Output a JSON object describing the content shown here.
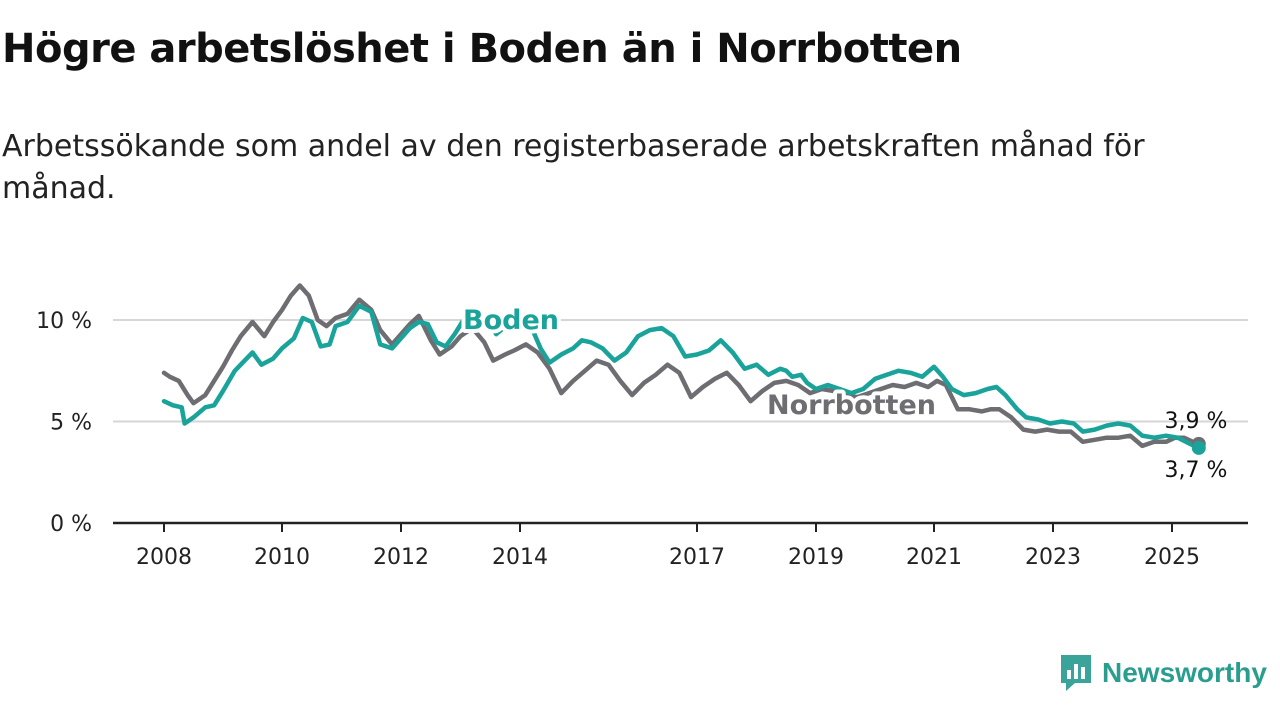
{
  "title": "Högre arbetslöshet i Boden än i Norrbotten",
  "subtitle": "Arbetssökande som andel av den registerbaserade arbetskraften månad för månad.",
  "brand": {
    "name": "Newsworthy",
    "icon": "newsworthy-logo-icon",
    "color": "#3aa39a"
  },
  "chart_data": {
    "type": "line",
    "x_ticks": [
      "2008",
      "2010",
      "2012",
      "2014",
      "2017",
      "2019",
      "2021",
      "2023",
      "2025"
    ],
    "y_ticks": [
      "0 %",
      "5 %",
      "10 %"
    ],
    "y_tick_values": [
      0,
      5,
      10
    ],
    "ylim": [
      0,
      10
    ],
    "grid": true,
    "series": [
      {
        "name": "Norrbotten",
        "color": "#6d6d72",
        "end_label": "3,9 %",
        "points": [
          [
            2008.0,
            7.4
          ],
          [
            2008.1,
            7.2
          ],
          [
            2008.25,
            7.0
          ],
          [
            2008.4,
            6.3
          ],
          [
            2008.5,
            5.9
          ],
          [
            2008.7,
            6.3
          ],
          [
            2008.85,
            7.0
          ],
          [
            2009.0,
            7.7
          ],
          [
            2009.15,
            8.5
          ],
          [
            2009.3,
            9.2
          ],
          [
            2009.5,
            9.9
          ],
          [
            2009.7,
            9.2
          ],
          [
            2009.85,
            9.9
          ],
          [
            2010.0,
            10.5
          ],
          [
            2010.15,
            11.2
          ],
          [
            2010.3,
            11.7
          ],
          [
            2010.45,
            11.2
          ],
          [
            2010.6,
            10.0
          ],
          [
            2010.75,
            9.7
          ],
          [
            2010.9,
            10.1
          ],
          [
            2011.1,
            10.3
          ],
          [
            2011.3,
            11.0
          ],
          [
            2011.5,
            10.5
          ],
          [
            2011.65,
            9.5
          ],
          [
            2011.85,
            8.8
          ],
          [
            2012.0,
            9.3
          ],
          [
            2012.15,
            9.8
          ],
          [
            2012.3,
            10.2
          ],
          [
            2012.5,
            9.0
          ],
          [
            2012.65,
            8.3
          ],
          [
            2012.85,
            8.7
          ],
          [
            2013.0,
            9.2
          ],
          [
            2013.2,
            9.6
          ],
          [
            2013.4,
            8.9
          ],
          [
            2013.55,
            8.0
          ],
          [
            2013.75,
            8.3
          ],
          [
            2013.9,
            8.5
          ],
          [
            2014.1,
            8.8
          ],
          [
            2014.3,
            8.4
          ],
          [
            2014.5,
            7.6
          ],
          [
            2014.7,
            6.4
          ],
          [
            2014.9,
            7.0
          ],
          [
            2015.1,
            7.5
          ],
          [
            2015.3,
            8.0
          ],
          [
            2015.5,
            7.8
          ],
          [
            2015.7,
            7.0
          ],
          [
            2015.9,
            6.3
          ],
          [
            2016.1,
            6.9
          ],
          [
            2016.3,
            7.3
          ],
          [
            2016.5,
            7.8
          ],
          [
            2016.7,
            7.4
          ],
          [
            2016.9,
            6.2
          ],
          [
            2017.1,
            6.7
          ],
          [
            2017.3,
            7.1
          ],
          [
            2017.5,
            7.4
          ],
          [
            2017.7,
            6.8
          ],
          [
            2017.9,
            6.0
          ],
          [
            2018.1,
            6.5
          ],
          [
            2018.3,
            6.9
          ],
          [
            2018.5,
            7.0
          ],
          [
            2018.7,
            6.8
          ],
          [
            2018.9,
            6.4
          ],
          [
            2019.1,
            6.6
          ],
          [
            2019.3,
            6.5
          ],
          [
            2019.5,
            6.3
          ],
          [
            2019.7,
            6.2
          ],
          [
            2019.9,
            6.4
          ],
          [
            2020.1,
            6.6
          ],
          [
            2020.3,
            6.8
          ],
          [
            2020.5,
            6.7
          ],
          [
            2020.7,
            6.9
          ],
          [
            2020.9,
            6.7
          ],
          [
            2021.05,
            7.0
          ],
          [
            2021.2,
            6.8
          ],
          [
            2021.4,
            5.6
          ],
          [
            2021.6,
            5.6
          ],
          [
            2021.8,
            5.5
          ],
          [
            2021.95,
            5.6
          ],
          [
            2022.1,
            5.6
          ],
          [
            2022.3,
            5.2
          ],
          [
            2022.5,
            4.6
          ],
          [
            2022.7,
            4.5
          ],
          [
            2022.9,
            4.6
          ],
          [
            2023.1,
            4.5
          ],
          [
            2023.3,
            4.5
          ],
          [
            2023.5,
            4.0
          ],
          [
            2023.7,
            4.1
          ],
          [
            2023.9,
            4.2
          ],
          [
            2024.1,
            4.2
          ],
          [
            2024.3,
            4.3
          ],
          [
            2024.5,
            3.8
          ],
          [
            2024.7,
            4.0
          ],
          [
            2024.9,
            4.0
          ],
          [
            2025.05,
            4.2
          ],
          [
            2025.2,
            4.2
          ],
          [
            2025.35,
            4.0
          ],
          [
            2025.45,
            3.9
          ]
        ]
      },
      {
        "name": "Boden",
        "color": "#1aa39a",
        "end_label": "3,7 %",
        "points": [
          [
            2008.0,
            6.0
          ],
          [
            2008.15,
            5.8
          ],
          [
            2008.3,
            5.7
          ],
          [
            2008.35,
            4.9
          ],
          [
            2008.5,
            5.2
          ],
          [
            2008.7,
            5.7
          ],
          [
            2008.85,
            5.8
          ],
          [
            2009.0,
            6.5
          ],
          [
            2009.2,
            7.5
          ],
          [
            2009.4,
            8.1
          ],
          [
            2009.5,
            8.4
          ],
          [
            2009.65,
            7.8
          ],
          [
            2009.85,
            8.1
          ],
          [
            2010.0,
            8.6
          ],
          [
            2010.2,
            9.1
          ],
          [
            2010.35,
            10.1
          ],
          [
            2010.5,
            9.9
          ],
          [
            2010.65,
            8.7
          ],
          [
            2010.8,
            8.8
          ],
          [
            2010.9,
            9.7
          ],
          [
            2011.1,
            9.9
          ],
          [
            2011.3,
            10.7
          ],
          [
            2011.5,
            10.4
          ],
          [
            2011.65,
            8.8
          ],
          [
            2011.85,
            8.6
          ],
          [
            2012.0,
            9.1
          ],
          [
            2012.15,
            9.6
          ],
          [
            2012.3,
            9.9
          ],
          [
            2012.45,
            9.8
          ],
          [
            2012.6,
            8.9
          ],
          [
            2012.75,
            8.7
          ],
          [
            2012.9,
            9.3
          ],
          [
            2013.05,
            10.0
          ],
          [
            2013.2,
            10.5
          ],
          [
            2013.4,
            10.2
          ],
          [
            2013.6,
            9.3
          ],
          [
            2013.8,
            9.8
          ],
          [
            2014.0,
            9.6
          ],
          [
            2014.2,
            9.6
          ],
          [
            2014.35,
            8.6
          ],
          [
            2014.5,
            7.9
          ],
          [
            2014.7,
            8.3
          ],
          [
            2014.9,
            8.6
          ],
          [
            2015.05,
            9.0
          ],
          [
            2015.2,
            8.9
          ],
          [
            2015.4,
            8.6
          ],
          [
            2015.6,
            8.0
          ],
          [
            2015.8,
            8.4
          ],
          [
            2016.0,
            9.2
          ],
          [
            2016.2,
            9.5
          ],
          [
            2016.4,
            9.6
          ],
          [
            2016.6,
            9.2
          ],
          [
            2016.8,
            8.2
          ],
          [
            2017.0,
            8.3
          ],
          [
            2017.2,
            8.5
          ],
          [
            2017.4,
            9.0
          ],
          [
            2017.6,
            8.4
          ],
          [
            2017.8,
            7.6
          ],
          [
            2018.0,
            7.8
          ],
          [
            2018.2,
            7.3
          ],
          [
            2018.4,
            7.6
          ],
          [
            2018.5,
            7.5
          ],
          [
            2018.6,
            7.2
          ],
          [
            2018.75,
            7.3
          ],
          [
            2018.85,
            6.9
          ],
          [
            2019.0,
            6.6
          ],
          [
            2019.2,
            6.8
          ],
          [
            2019.4,
            6.6
          ],
          [
            2019.6,
            6.4
          ],
          [
            2019.8,
            6.6
          ],
          [
            2020.0,
            7.1
          ],
          [
            2020.2,
            7.3
          ],
          [
            2020.4,
            7.5
          ],
          [
            2020.6,
            7.4
          ],
          [
            2020.8,
            7.2
          ],
          [
            2021.0,
            7.7
          ],
          [
            2021.15,
            7.2
          ],
          [
            2021.3,
            6.6
          ],
          [
            2021.5,
            6.3
          ],
          [
            2021.7,
            6.4
          ],
          [
            2021.9,
            6.6
          ],
          [
            2022.05,
            6.7
          ],
          [
            2022.2,
            6.3
          ],
          [
            2022.4,
            5.6
          ],
          [
            2022.55,
            5.2
          ],
          [
            2022.75,
            5.1
          ],
          [
            2022.95,
            4.9
          ],
          [
            2023.15,
            5.0
          ],
          [
            2023.35,
            4.9
          ],
          [
            2023.5,
            4.5
          ],
          [
            2023.7,
            4.6
          ],
          [
            2023.9,
            4.8
          ],
          [
            2024.1,
            4.9
          ],
          [
            2024.3,
            4.8
          ],
          [
            2024.5,
            4.3
          ],
          [
            2024.7,
            4.2
          ],
          [
            2024.9,
            4.3
          ],
          [
            2025.1,
            4.2
          ],
          [
            2025.3,
            3.9
          ],
          [
            2025.45,
            3.7
          ]
        ]
      }
    ]
  }
}
